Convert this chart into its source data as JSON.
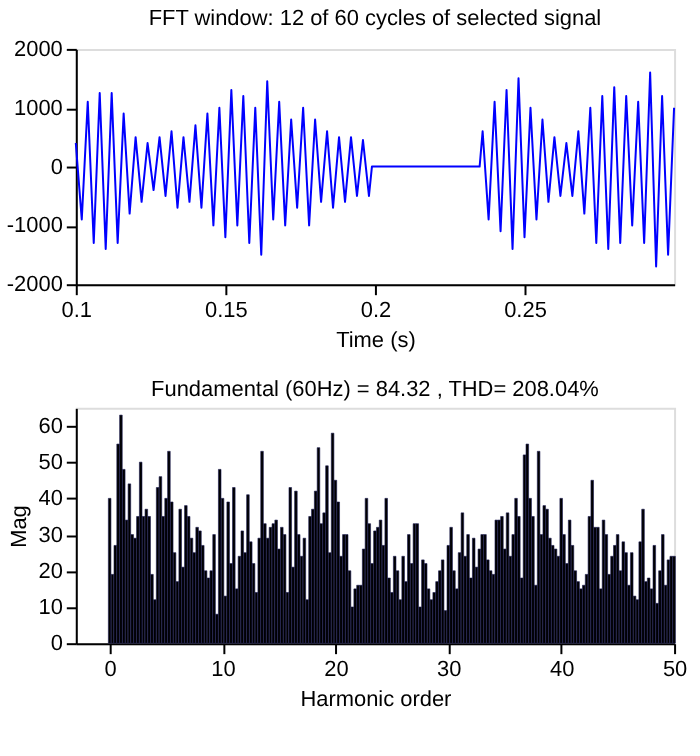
{
  "chart_data": [
    {
      "type": "line",
      "title": "FFT window: 12 of 60 cycles of selected signal",
      "xlabel": "Time (s)",
      "xlim": [
        0.1,
        0.3
      ],
      "xticks": [
        0.1,
        0.15,
        0.2,
        0.25
      ],
      "ylim": [
        -2000,
        2000
      ],
      "yticks": [
        -2000,
        -1000,
        0,
        1000,
        2000
      ],
      "grid": false,
      "marker": "none",
      "line_style": "solid",
      "x": [
        0.1,
        0.102,
        0.104,
        0.106,
        0.108,
        0.11,
        0.112,
        0.114,
        0.116,
        0.118,
        0.12,
        0.122,
        0.124,
        0.126,
        0.128,
        0.13,
        0.132,
        0.134,
        0.136,
        0.138,
        0.14,
        0.142,
        0.144,
        0.146,
        0.148,
        0.15,
        0.152,
        0.154,
        0.156,
        0.158,
        0.16,
        0.162,
        0.164,
        0.166,
        0.168,
        0.17,
        0.172,
        0.174,
        0.176,
        0.178,
        0.18,
        0.182,
        0.184,
        0.186,
        0.188,
        0.19,
        0.192,
        0.194,
        0.196,
        0.198,
        0.199,
        0.235,
        0.236,
        0.238,
        0.24,
        0.242,
        0.244,
        0.246,
        0.248,
        0.25,
        0.252,
        0.254,
        0.256,
        0.258,
        0.26,
        0.262,
        0.264,
        0.266,
        0.268,
        0.27,
        0.272,
        0.274,
        0.276,
        0.278,
        0.28,
        0.282,
        0.284,
        0.286,
        0.288,
        0.29,
        0.292,
        0.294,
        0.296,
        0.298,
        0.3
      ],
      "series": [
        {
          "color": "#0000ff",
          "values": [
            400,
            -900,
            1100,
            -1300,
            1250,
            -1400,
            1250,
            -1300,
            900,
            -800,
            500,
            -600,
            400,
            -400,
            500,
            -500,
            600,
            -700,
            500,
            -600,
            700,
            -700,
            900,
            -1000,
            1000,
            -1200,
            1300,
            -1000,
            1200,
            -1300,
            1000,
            -1500,
            1450,
            -900,
            1100,
            -1000,
            800,
            -700,
            1000,
            -1000,
            800,
            -600,
            600,
            -700,
            500,
            -600,
            500,
            -500,
            450,
            -500,
            0,
            0,
            600,
            -900,
            1100,
            -1100,
            1300,
            -1400,
            1500,
            -1200,
            1000,
            -900,
            800,
            -600,
            500,
            -500,
            400,
            -500,
            600,
            -800,
            1000,
            -1300,
            1200,
            -1400,
            1350,
            -1300,
            1200,
            -1000,
            1100,
            -1300,
            1600,
            -1700,
            1200,
            -1500,
            1000
          ]
        }
      ]
    },
    {
      "type": "bar",
      "title": "Fundamental (60Hz) = 84.32 , THD= 208.04%",
      "xlabel": "Harmonic order",
      "ylabel": "Mag",
      "xlim": [
        -3,
        50
      ],
      "xticks": [
        0,
        10,
        20,
        30,
        40,
        50
      ],
      "ylim": [
        0,
        65
      ],
      "yticks": [
        0,
        10,
        20,
        30,
        40,
        50,
        60
      ],
      "grid": false,
      "x": [
        0,
        0.25,
        0.5,
        0.75,
        1,
        1.25,
        1.5,
        1.75,
        2,
        2.25,
        2.5,
        2.75,
        3,
        3.25,
        3.5,
        3.75,
        4,
        4.25,
        4.5,
        4.75,
        5,
        5.25,
        5.5,
        5.75,
        6,
        6.25,
        6.5,
        6.75,
        7,
        7.25,
        7.5,
        7.75,
        8,
        8.25,
        8.5,
        8.75,
        9,
        9.25,
        9.5,
        9.75,
        10,
        10.25,
        10.5,
        10.75,
        11,
        11.25,
        11.5,
        11.75,
        12,
        12.25,
        12.5,
        12.75,
        13,
        13.25,
        13.5,
        13.75,
        14,
        14.25,
        14.5,
        14.75,
        15,
        15.25,
        15.5,
        15.75,
        16,
        16.25,
        16.5,
        16.75,
        17,
        17.25,
        17.5,
        17.75,
        18,
        18.25,
        18.5,
        18.75,
        19,
        19.25,
        19.5,
        19.75,
        20,
        20.25,
        20.5,
        20.75,
        21,
        21.25,
        21.5,
        21.75,
        22,
        22.25,
        22.5,
        22.75,
        23,
        23.25,
        23.5,
        23.75,
        24,
        24.25,
        24.5,
        24.75,
        25,
        25.25,
        25.5,
        25.75,
        26,
        26.25,
        26.5,
        26.75,
        27,
        27.25,
        27.5,
        27.75,
        28,
        28.25,
        28.5,
        28.75,
        29,
        29.25,
        29.5,
        29.75,
        30,
        30.25,
        30.5,
        30.75,
        31,
        31.25,
        31.5,
        31.75,
        32,
        32.25,
        32.5,
        32.75,
        33,
        33.25,
        33.5,
        33.75,
        34,
        34.25,
        34.5,
        34.75,
        35,
        35.25,
        35.5,
        35.75,
        36,
        36.25,
        36.5,
        36.75,
        37,
        37.25,
        37.5,
        37.75,
        38,
        38.25,
        38.5,
        38.75,
        39,
        39.25,
        39.5,
        39.75,
        40,
        40.25,
        40.5,
        40.75,
        41,
        41.25,
        41.5,
        41.75,
        42,
        42.25,
        42.5,
        42.75,
        43,
        43.25,
        43.5,
        43.75,
        44,
        44.25,
        44.5,
        44.75,
        45,
        45.25,
        45.5,
        45.75,
        46,
        46.25,
        46.5,
        46.75,
        47,
        47.25,
        47.5,
        47.75,
        48,
        48.25,
        48.5,
        48.75,
        49,
        49.25,
        49.5,
        49.75,
        50
      ],
      "series": [
        {
          "color": "#000000",
          "values": [
            40,
            19,
            27,
            55,
            63,
            48,
            34,
            44,
            30,
            29,
            35,
            50,
            35,
            37,
            35,
            19,
            12,
            43,
            46,
            35,
            40,
            53,
            39,
            25,
            17,
            37,
            21,
            38,
            35,
            29,
            25,
            32,
            31,
            27,
            20,
            18,
            20,
            30,
            8,
            48,
            40,
            13,
            39,
            22,
            43,
            15,
            24,
            31,
            25,
            41,
            28,
            22,
            14,
            29,
            53,
            33,
            29,
            32,
            33,
            34,
            26,
            32,
            30,
            14,
            43,
            21,
            42,
            30,
            24,
            29,
            12,
            35,
            37,
            42,
            54,
            33,
            36,
            49,
            25,
            58,
            45,
            39,
            24,
            30,
            30,
            20,
            10,
            15,
            16,
            16,
            26,
            40,
            33,
            22,
            31,
            32,
            34,
            27,
            40,
            18,
            14,
            24,
            20,
            12,
            24,
            17,
            30,
            22,
            33,
            33,
            10,
            23,
            22,
            15,
            12,
            14,
            17,
            20,
            23,
            9,
            27,
            32,
            20,
            15,
            25,
            36,
            24,
            30,
            18,
            29,
            21,
            26,
            30,
            30,
            23,
            20,
            19,
            34,
            34,
            35,
            26,
            36,
            24,
            30,
            40,
            35,
            18,
            52,
            55,
            40,
            35,
            16,
            53,
            30,
            38,
            37,
            29,
            27,
            26,
            24,
            40,
            30,
            22,
            34,
            27,
            20,
            17,
            15,
            16,
            19,
            35,
            45,
            32,
            32,
            15,
            34,
            30,
            19,
            24,
            27,
            30,
            20,
            28,
            25,
            16,
            25,
            13,
            12,
            28,
            37,
            17,
            18,
            15,
            27,
            11,
            20,
            30,
            16,
            23,
            24,
            24
          ]
        }
      ]
    }
  ]
}
